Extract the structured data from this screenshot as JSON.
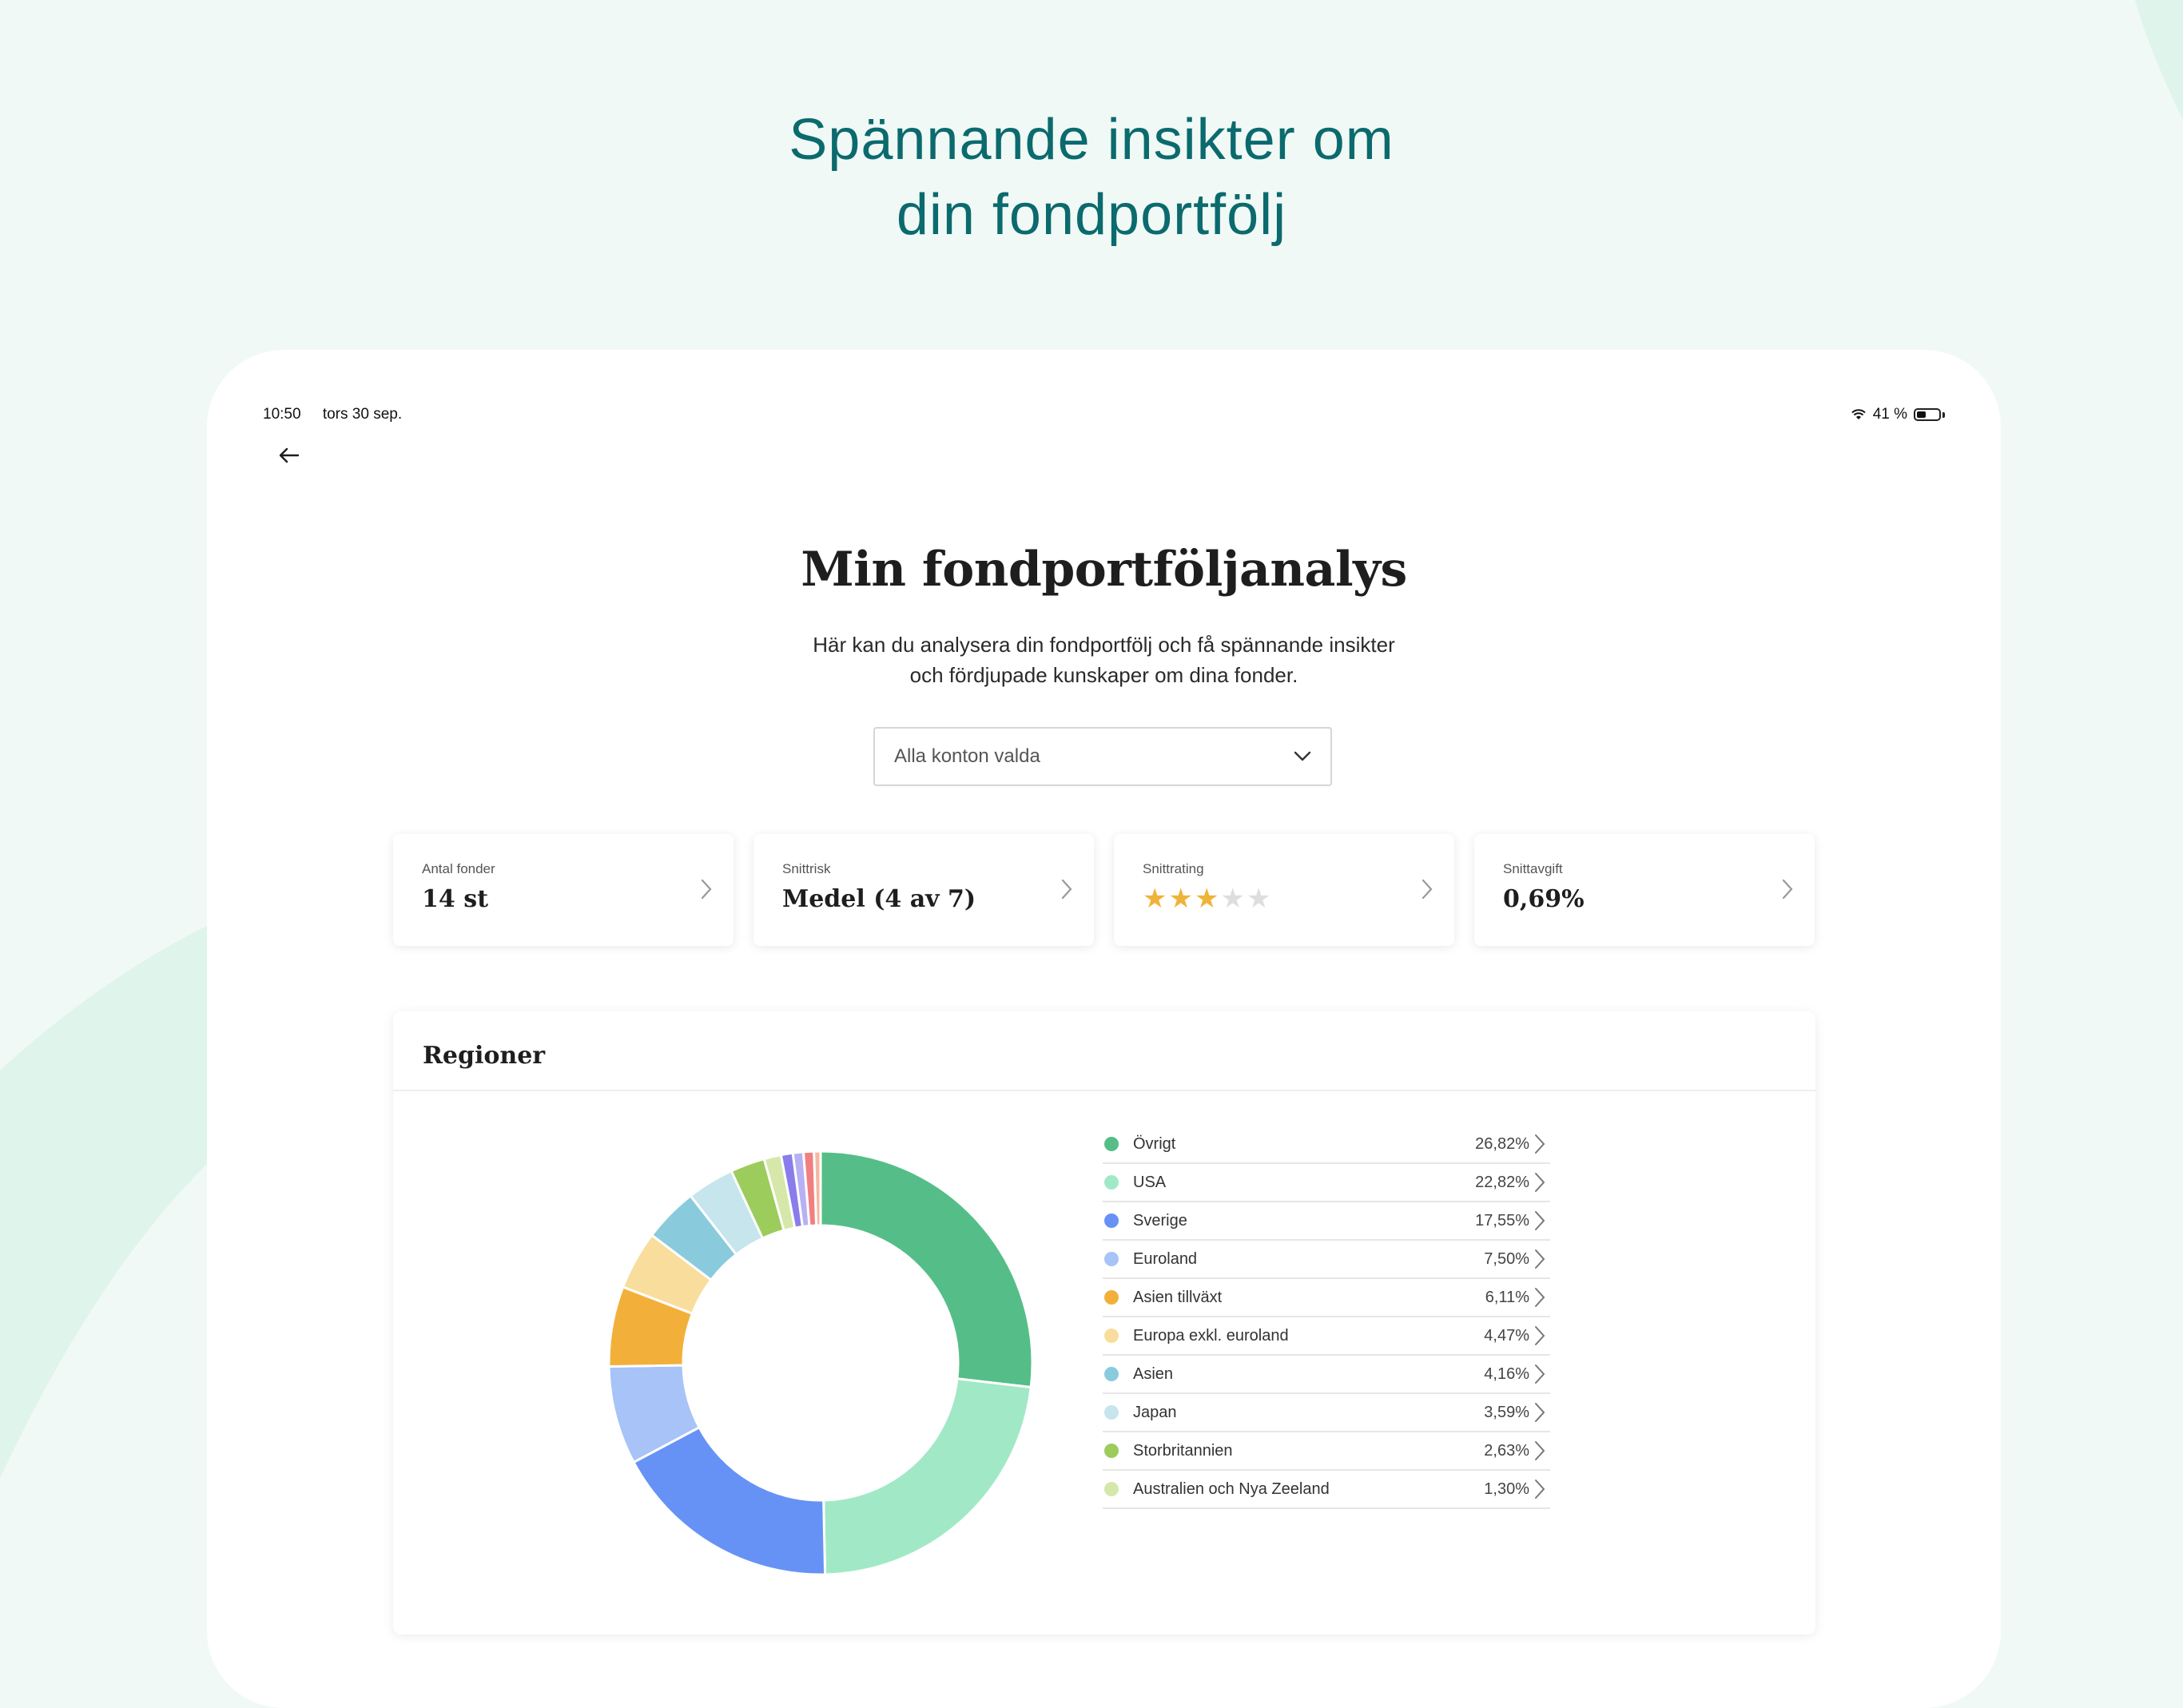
{
  "headline": {
    "line1": "Spännande insikter om",
    "line2": "din fondportfölj"
  },
  "colors": {
    "headline": "#0b6a6e",
    "background": "#f0f9f5",
    "swoosh": "#dff4ea",
    "star_on": "#f0b33a",
    "star_off": "#dedede"
  },
  "status_bar": {
    "time": "10:50",
    "date": "tors 30 sep.",
    "battery": "41 %",
    "battery_level": 0.41
  },
  "nav": {
    "back_icon": "arrow-left-icon"
  },
  "page": {
    "title": "Min fondportföljanalys",
    "description_line1": "Här kan du analysera din fondportfölj och få spännande insikter",
    "description_line2": "och fördjupade kunskaper om dina fonder."
  },
  "account_select": {
    "value": "Alla konton valda",
    "icon": "chevron-down-icon"
  },
  "cards": [
    {
      "label": "Antal fonder",
      "value": "14 st"
    },
    {
      "label": "Snittrisk",
      "value": "Medel (4 av 7)"
    },
    {
      "label": "Snittrating",
      "rating": 3,
      "max": 5
    },
    {
      "label": "Snittavgift",
      "value": "0,69%"
    }
  ],
  "regions": {
    "title": "Regioner",
    "legend": [
      {
        "name": "Övrigt",
        "value": "26,82%",
        "color": "#55be88"
      },
      {
        "name": "USA",
        "value": "22,82%",
        "color": "#a1e9c6"
      },
      {
        "name": "Sverige",
        "value": "17,55%",
        "color": "#6692f5"
      },
      {
        "name": "Euroland",
        "value": "7,50%",
        "color": "#a7c3f7"
      },
      {
        "name": "Asien tillväxt",
        "value": "6,11%",
        "color": "#f2b03b"
      },
      {
        "name": "Europa exkl. euroland",
        "value": "4,47%",
        "color": "#f8dd9c"
      },
      {
        "name": "Asien",
        "value": "4,16%",
        "color": "#89cbdd"
      },
      {
        "name": "Japan",
        "value": "3,59%",
        "color": "#c6e5ec"
      },
      {
        "name": "Storbritannien",
        "value": "2,63%",
        "color": "#9ccc5c"
      },
      {
        "name": "Australien och Nya Zeeland",
        "value": "1,30%",
        "color": "#d5e8a9"
      }
    ]
  },
  "chart_data": {
    "type": "pie",
    "categories": [
      "Övrigt",
      "USA",
      "Sverige",
      "Euroland",
      "Asien tillväxt",
      "Europa exkl. euroland",
      "Asien",
      "Japan",
      "Storbritannien",
      "Australien och Nya Zeeland",
      "",
      "",
      "",
      ""
    ],
    "values": [
      26.82,
      22.82,
      17.55,
      7.5,
      6.11,
      4.47,
      4.16,
      3.59,
      2.63,
      1.3,
      0.9,
      0.8,
      0.8,
      0.5
    ],
    "colors": [
      "#55be88",
      "#a1e9c6",
      "#6692f5",
      "#a7c3f7",
      "#f2b03b",
      "#f8dd9c",
      "#89cbdd",
      "#c6e5ec",
      "#9ccc5c",
      "#d5e8a9",
      "#8a7cea",
      "#b8b0f4",
      "#f08080",
      "#f4b8a0"
    ],
    "donut": true
  }
}
